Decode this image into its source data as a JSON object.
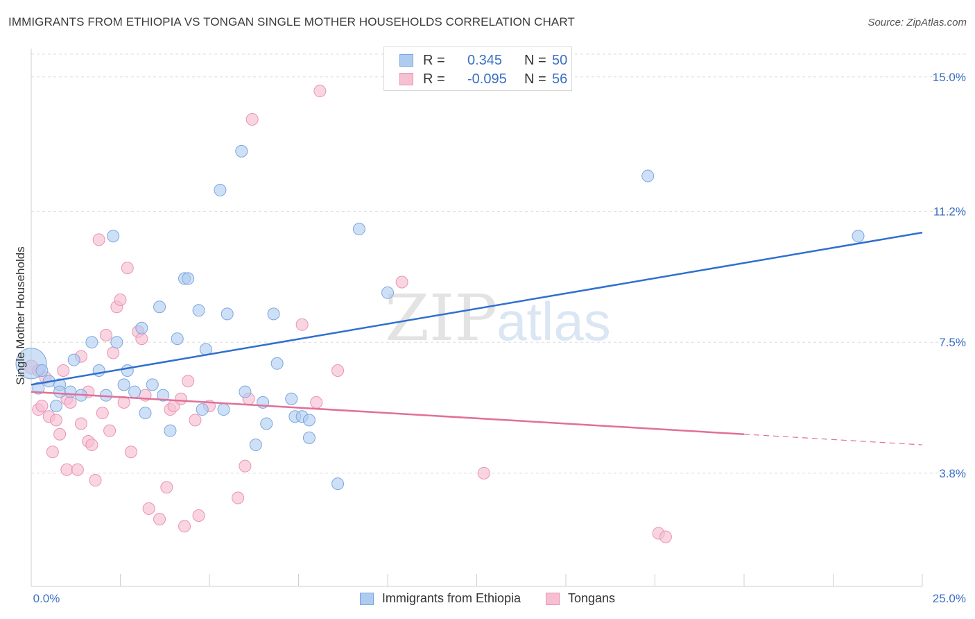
{
  "header": {
    "title": "IMMIGRANTS FROM ETHIOPIA VS TONGAN SINGLE MOTHER HOUSEHOLDS CORRELATION CHART",
    "source": "Source: ZipAtlas.com"
  },
  "watermark": {
    "zip": "ZIP",
    "atlas": "atlas"
  },
  "legend": {
    "rows": [
      {
        "r_label": "R =",
        "r_value": "0.345",
        "n_label": "N =",
        "n_value": "50"
      },
      {
        "r_label": "R =",
        "r_value": "-0.095",
        "n_label": "N =",
        "n_value": "56"
      }
    ]
  },
  "colors": {
    "ethiopia_fill": "#aecbf0",
    "ethiopia_stroke": "#7aa6e0",
    "ethiopia_line": "#2f6fd0",
    "tongan_fill": "#f6bfd2",
    "tongan_stroke": "#ea93b2",
    "tongan_line": "#e26f99",
    "grid": "#dddddd",
    "axis_label": "#3a6fc4"
  },
  "chart_data": {
    "type": "scatter",
    "title": "IMMIGRANTS FROM ETHIOPIA VS TONGAN SINGLE MOTHER HOUSEHOLDS CORRELATION CHART",
    "xlabel": "",
    "ylabel": "Single Mother Households",
    "xlim": [
      0,
      25
    ],
    "ylim": [
      0.6,
      15.8
    ],
    "x_tick_labels": [
      "0.0%",
      "25.0%"
    ],
    "y_ticks": [
      3.8,
      7.5,
      11.2,
      15.0
    ],
    "y_tick_labels": [
      "3.8%",
      "7.5%",
      "11.2%",
      "15.0%"
    ],
    "grid": true,
    "legend_position": "top-center",
    "series": [
      {
        "name": "Immigrants from Ethiopia",
        "r": 0.345,
        "n": 50,
        "trend": {
          "x": [
            0,
            25
          ],
          "y": [
            6.3,
            10.6
          ]
        },
        "points": [
          [
            0.0,
            6.9
          ],
          [
            0.3,
            6.7
          ],
          [
            0.2,
            6.2
          ],
          [
            0.5,
            6.4
          ],
          [
            0.8,
            6.3
          ],
          [
            0.8,
            6.1
          ],
          [
            0.7,
            5.7
          ],
          [
            1.1,
            6.1
          ],
          [
            1.4,
            6.0
          ],
          [
            1.2,
            7.0
          ],
          [
            1.7,
            7.5
          ],
          [
            1.9,
            6.7
          ],
          [
            2.1,
            6.0
          ],
          [
            2.3,
            10.5
          ],
          [
            2.4,
            7.5
          ],
          [
            2.6,
            6.3
          ],
          [
            2.7,
            6.7
          ],
          [
            2.9,
            6.1
          ],
          [
            3.1,
            7.9
          ],
          [
            3.2,
            5.5
          ],
          [
            3.4,
            6.3
          ],
          [
            3.6,
            8.5
          ],
          [
            3.7,
            6.0
          ],
          [
            3.9,
            5.0
          ],
          [
            4.1,
            7.6
          ],
          [
            4.3,
            9.3
          ],
          [
            4.4,
            9.3
          ],
          [
            4.7,
            8.4
          ],
          [
            4.8,
            5.6
          ],
          [
            4.9,
            7.3
          ],
          [
            5.3,
            11.8
          ],
          [
            5.4,
            5.6
          ],
          [
            5.5,
            8.3
          ],
          [
            5.9,
            12.9
          ],
          [
            6.0,
            6.1
          ],
          [
            6.3,
            4.6
          ],
          [
            6.5,
            5.8
          ],
          [
            6.6,
            5.2
          ],
          [
            6.8,
            8.3
          ],
          [
            6.9,
            6.9
          ],
          [
            7.3,
            5.9
          ],
          [
            7.4,
            5.4
          ],
          [
            7.6,
            5.4
          ],
          [
            7.8,
            5.3
          ],
          [
            7.8,
            4.8
          ],
          [
            8.6,
            3.5
          ],
          [
            9.2,
            10.7
          ],
          [
            10.0,
            8.9
          ],
          [
            17.3,
            12.2
          ],
          [
            23.2,
            10.5
          ]
        ]
      },
      {
        "name": "Tongans",
        "r": -0.095,
        "n": 56,
        "trend": {
          "x": [
            0,
            20
          ],
          "y": [
            6.1,
            4.9
          ]
        },
        "trend_dashed": {
          "x": [
            20,
            25
          ],
          "y": [
            4.9,
            4.6
          ]
        },
        "points": [
          [
            0.0,
            6.8
          ],
          [
            0.2,
            6.7
          ],
          [
            0.2,
            5.6
          ],
          [
            0.3,
            5.7
          ],
          [
            0.4,
            6.5
          ],
          [
            0.5,
            5.4
          ],
          [
            0.6,
            4.4
          ],
          [
            0.7,
            5.3
          ],
          [
            0.8,
            4.9
          ],
          [
            0.9,
            6.7
          ],
          [
            1.0,
            5.9
          ],
          [
            1.0,
            3.9
          ],
          [
            1.1,
            5.8
          ],
          [
            1.3,
            3.9
          ],
          [
            1.4,
            5.2
          ],
          [
            1.4,
            7.1
          ],
          [
            1.6,
            4.7
          ],
          [
            1.6,
            6.1
          ],
          [
            1.7,
            4.6
          ],
          [
            1.8,
            3.6
          ],
          [
            1.9,
            10.4
          ],
          [
            2.0,
            5.5
          ],
          [
            2.1,
            7.7
          ],
          [
            2.2,
            5.0
          ],
          [
            2.3,
            7.2
          ],
          [
            2.4,
            8.5
          ],
          [
            2.5,
            8.7
          ],
          [
            2.6,
            5.8
          ],
          [
            2.7,
            9.6
          ],
          [
            2.8,
            4.4
          ],
          [
            3.0,
            7.8
          ],
          [
            3.1,
            7.6
          ],
          [
            3.2,
            6.0
          ],
          [
            3.3,
            2.8
          ],
          [
            3.6,
            2.5
          ],
          [
            3.8,
            3.4
          ],
          [
            3.9,
            5.6
          ],
          [
            4.0,
            5.7
          ],
          [
            4.2,
            5.9
          ],
          [
            4.3,
            2.3
          ],
          [
            4.4,
            6.4
          ],
          [
            4.6,
            5.3
          ],
          [
            4.7,
            2.6
          ],
          [
            5.0,
            5.7
          ],
          [
            5.8,
            3.1
          ],
          [
            6.0,
            4.0
          ],
          [
            6.1,
            5.9
          ],
          [
            6.2,
            13.8
          ],
          [
            7.6,
            8.0
          ],
          [
            8.0,
            5.8
          ],
          [
            8.1,
            14.6
          ],
          [
            8.6,
            6.7
          ],
          [
            10.4,
            9.2
          ],
          [
            12.7,
            3.8
          ],
          [
            17.6,
            2.1
          ],
          [
            17.8,
            2.0
          ]
        ]
      }
    ]
  }
}
